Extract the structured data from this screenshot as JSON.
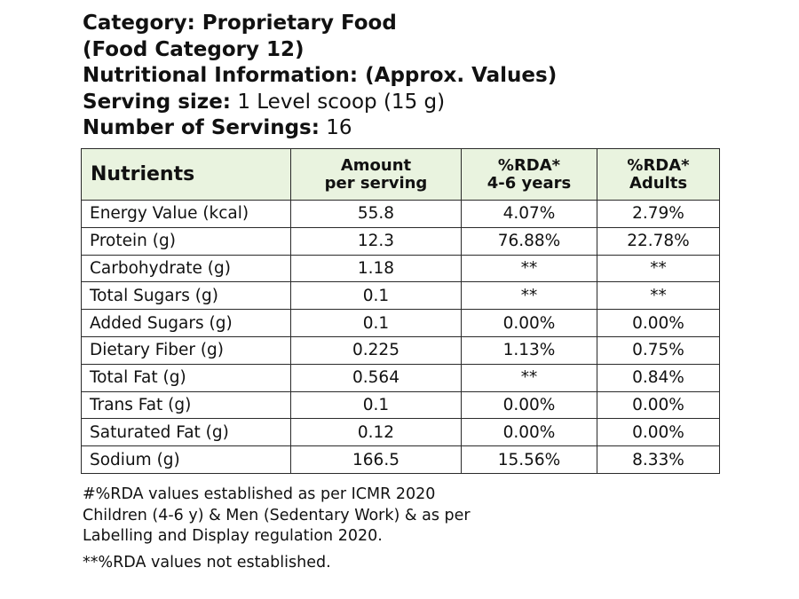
{
  "header": {
    "category": "Category: Proprietary Food",
    "food_category": "(Food Category 12)",
    "nutrition_title": "Nutritional Information: (Approx. Values)",
    "serving_size_label": "Serving size:",
    "serving_size_value": "1 Level scoop (15 g)",
    "servings_label": "Number of Servings:",
    "servings_value": "16"
  },
  "table": {
    "columns": [
      {
        "line1": "Nutrients",
        "line2": ""
      },
      {
        "line1": "Amount",
        "line2": "per serving"
      },
      {
        "line1": "%RDA*",
        "line2": "4-6 years"
      },
      {
        "line1": "%RDA*",
        "line2": "Adults"
      }
    ],
    "rows": [
      {
        "nutrient": "Energy Value (kcal)",
        "amount": "55.8",
        "rda_children": "4.07%",
        "rda_adults": "2.79%"
      },
      {
        "nutrient": "Protein (g)",
        "amount": "12.3",
        "rda_children": "76.88%",
        "rda_adults": "22.78%"
      },
      {
        "nutrient": "Carbohydrate (g)",
        "amount": "1.18",
        "rda_children": "**",
        "rda_adults": "**"
      },
      {
        "nutrient": "Total Sugars (g)",
        "amount": "0.1",
        "rda_children": "**",
        "rda_adults": "**"
      },
      {
        "nutrient": "Added Sugars (g)",
        "amount": "0.1",
        "rda_children": "0.00%",
        "rda_adults": "0.00%"
      },
      {
        "nutrient": "Dietary Fiber (g)",
        "amount": "0.225",
        "rda_children": "1.13%",
        "rda_adults": "0.75%"
      },
      {
        "nutrient": "Total Fat (g)",
        "amount": "0.564",
        "rda_children": "**",
        "rda_adults": "0.84%"
      },
      {
        "nutrient": "Trans Fat (g)",
        "amount": "0.1",
        "rda_children": "0.00%",
        "rda_adults": "0.00%"
      },
      {
        "nutrient": "Saturated Fat (g)",
        "amount": "0.12",
        "rda_children": "0.00%",
        "rda_adults": "0.00%"
      },
      {
        "nutrient": "Sodium (g)",
        "amount": "166.5",
        "rda_children": "15.56%",
        "rda_adults": "8.33%"
      }
    ]
  },
  "footer": {
    "note_1": "#%RDA values established as per  ICMR 2020",
    "note_2": "Children (4-6 y) & Men (Sedentary Work) & as per",
    "note_3": "Labelling and Display regulation 2020.",
    "note_4": "**%RDA values not established."
  },
  "colors": {
    "header_background": "#e9f3df",
    "border": "#2a2a2a",
    "text": "#111111"
  }
}
